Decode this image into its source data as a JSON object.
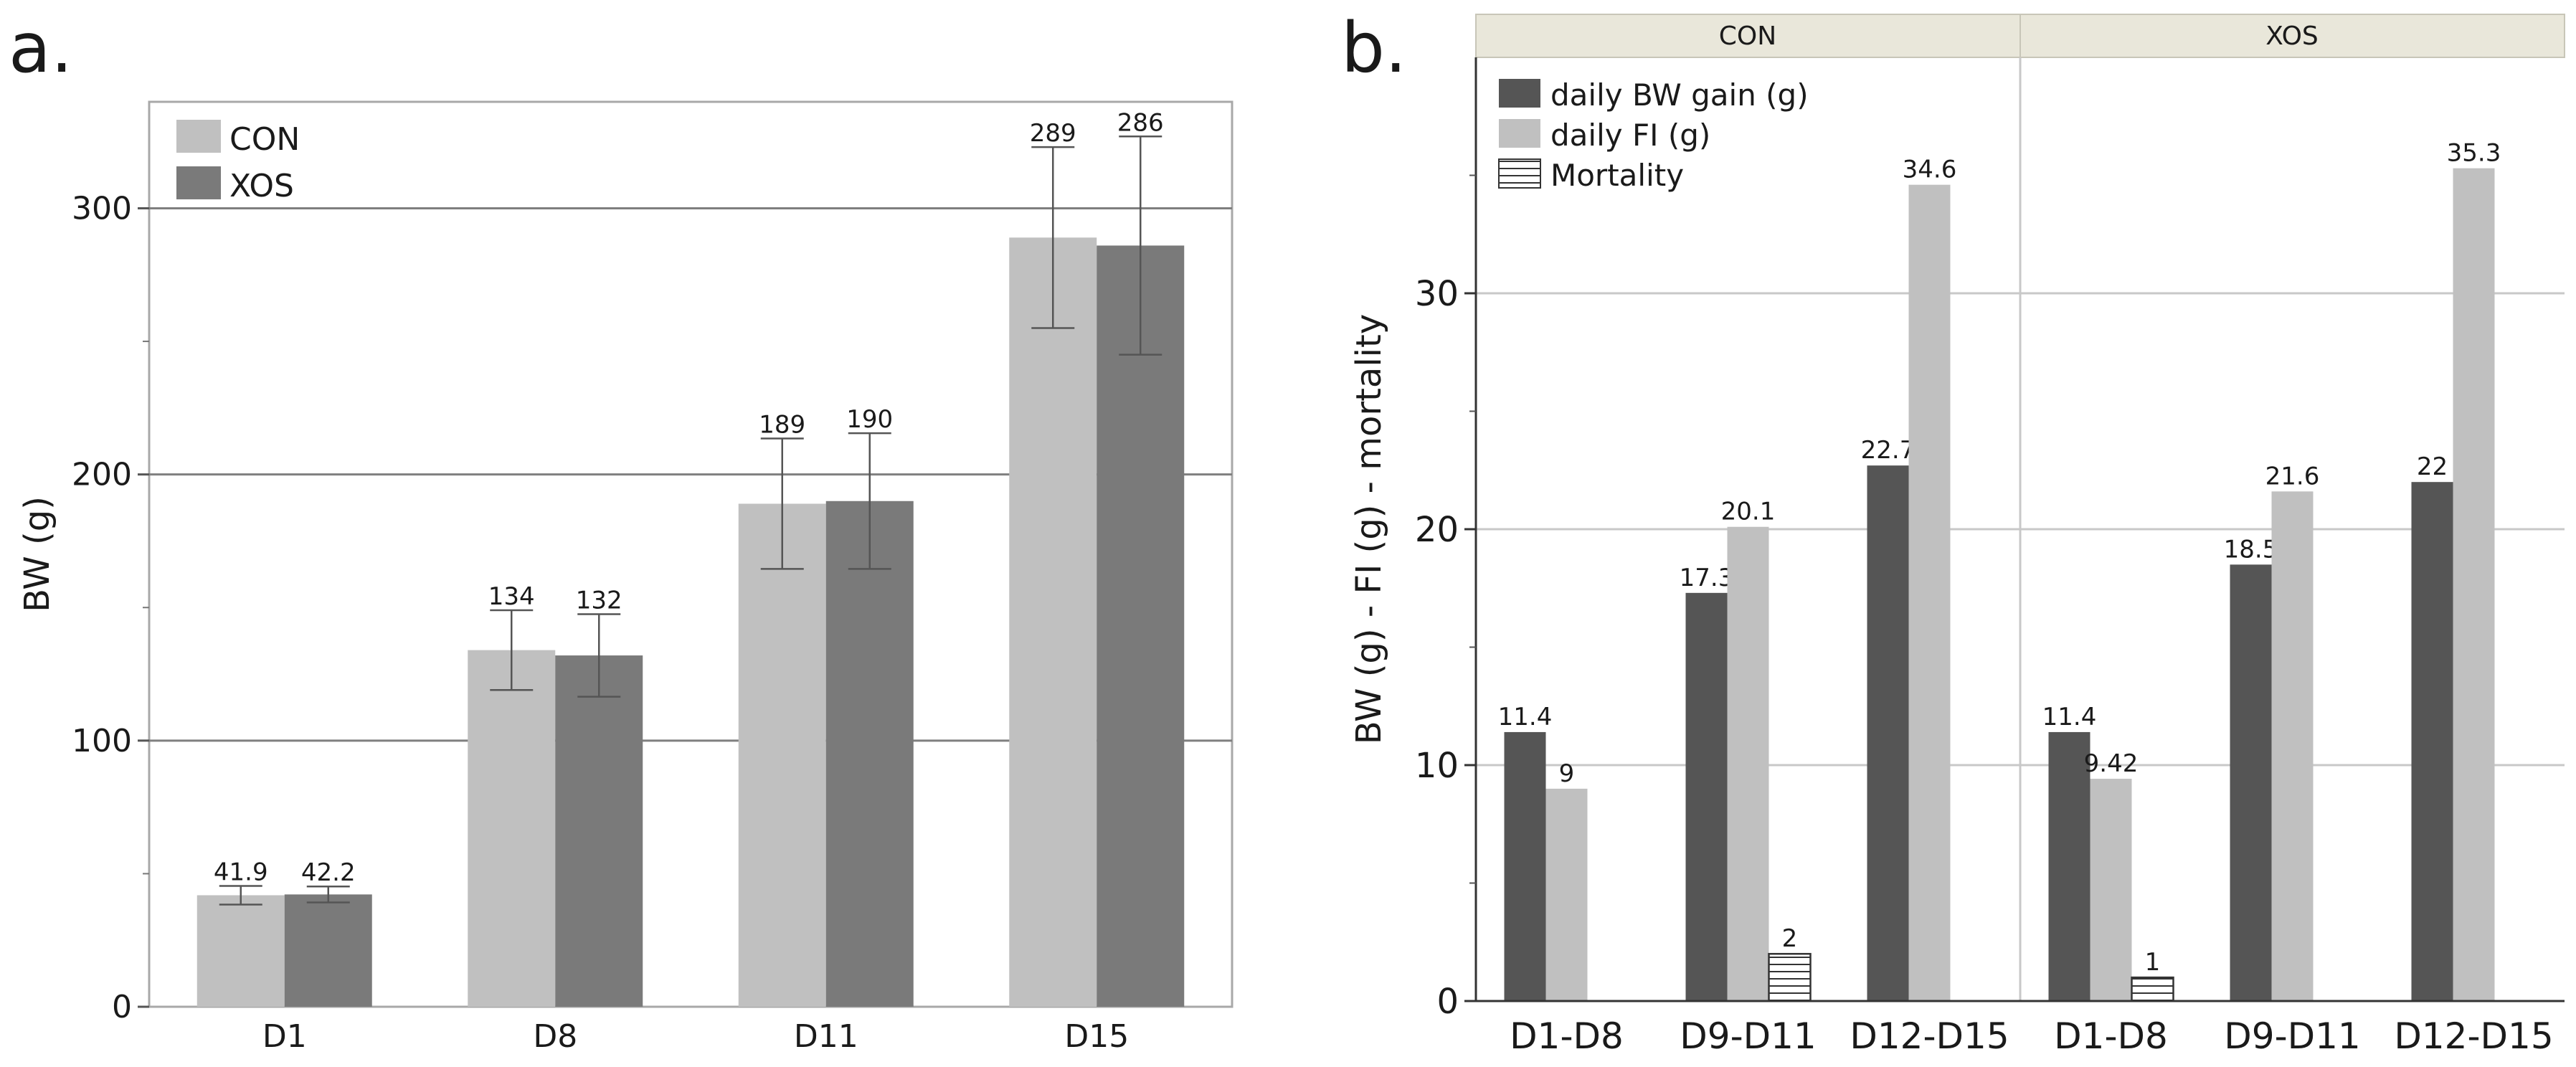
{
  "chart_data": [
    {
      "type": "bar",
      "panel_label": "a.",
      "ylabel": "BW (g)",
      "xlabel": "",
      "ylim": [
        0,
        340
      ],
      "yticks": [
        0,
        100,
        200,
        300
      ],
      "minor_yticks": [
        50,
        150,
        250
      ],
      "gridlines": [
        100,
        200,
        300
      ],
      "legend_position": "top-left",
      "categories": [
        "D1",
        "D8",
        "D11",
        "D15"
      ],
      "series": [
        {
          "name": "CON",
          "color": "#c0c0c0",
          "values": [
            41.9,
            134,
            189,
            289
          ],
          "value_labels": [
            "41.9",
            "134",
            "189",
            "289"
          ],
          "error": [
            3.5,
            15,
            24.5,
            34
          ]
        },
        {
          "name": "XOS",
          "color": "#7a7a7a",
          "values": [
            42.2,
            132,
            190,
            286
          ],
          "value_labels": [
            "42.2",
            "132",
            "190",
            "286"
          ],
          "error": [
            3,
            15.5,
            25.5,
            41
          ]
        }
      ]
    },
    {
      "type": "bar",
      "panel_label": "b.",
      "ylabel": "BW (g) - FI (g) - mortality",
      "xlabel": "",
      "ylim": [
        0,
        40
      ],
      "yticks": [
        0,
        10,
        20,
        30
      ],
      "minor_yticks": [
        5,
        15,
        25,
        35
      ],
      "gridlines": [
        10,
        20,
        30
      ],
      "legend_position": "top-left",
      "facets": [
        {
          "title": "CON",
          "categories": [
            "D1-D8",
            "D9-D11",
            "D12-D15"
          ],
          "series": [
            {
              "name": "daily BW gain (g)",
              "values": [
                11.4,
                17.3,
                22.7
              ],
              "value_labels": [
                "11.4",
                "17.3",
                "22.7"
              ]
            },
            {
              "name": "daily FI (g)",
              "values": [
                9,
                20.1,
                34.6
              ],
              "value_labels": [
                "9",
                "20.1",
                "34.6"
              ]
            },
            {
              "name": "Mortality",
              "values": [
                null,
                2,
                null
              ],
              "value_labels": [
                "",
                "2",
                ""
              ]
            }
          ]
        },
        {
          "title": "XOS",
          "categories": [
            "D1-D8",
            "D9-D11",
            "D12-D15"
          ],
          "series": [
            {
              "name": "daily BW gain (g)",
              "values": [
                11.4,
                18.5,
                22
              ],
              "value_labels": [
                "11.4",
                "18.5",
                "22"
              ]
            },
            {
              "name": "daily FI (g)",
              "values": [
                9.42,
                21.6,
                35.3
              ],
              "value_labels": [
                "9.42",
                "21.6",
                "35.3"
              ]
            },
            {
              "name": "Mortality",
              "values": [
                1,
                null,
                null
              ],
              "value_labels": [
                "1",
                "",
                ""
              ]
            }
          ]
        }
      ],
      "series_styles": [
        {
          "name": "daily BW gain (g)",
          "color": "#555555",
          "pattern": "solid"
        },
        {
          "name": "daily FI (g)",
          "color": "#c0c0c0",
          "pattern": "solid"
        },
        {
          "name": "Mortality",
          "color": "#ffffff",
          "pattern": "horizontal-lines"
        }
      ]
    }
  ]
}
